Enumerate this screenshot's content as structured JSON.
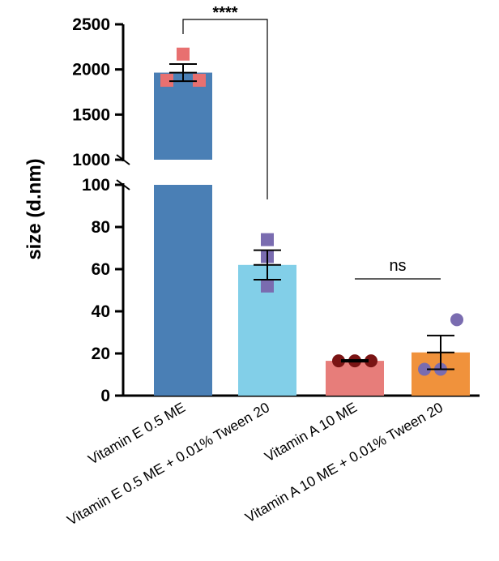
{
  "chart_data": {
    "type": "bar",
    "title": "",
    "xlabel": "",
    "ylabel": "size (d.nm)",
    "axis_break": true,
    "y_lower_range": [
      0,
      100
    ],
    "y_upper_range": [
      1000,
      2500
    ],
    "y_lower_ticks": [
      "0",
      "20",
      "40",
      "60",
      "80",
      "100"
    ],
    "y_upper_ticks": [
      "1000",
      "1500",
      "2000",
      "2500"
    ],
    "categories": [
      "Vitamin E 0.5 ME",
      "Vitamin E 0.5 ME + 0.01% Tween 20",
      "Vitamin A 10 ME",
      "Vitamin A 10 ME + 0.01% Tween 20"
    ],
    "values": [
      1965,
      62,
      16.5,
      20.5
    ],
    "error": [
      95,
      7,
      0.4,
      8
    ],
    "points": [
      [
        1880,
        2170,
        1880
      ],
      [
        52,
        66,
        74
      ],
      [
        16.5,
        16.5,
        16.5
      ],
      [
        12.5,
        12.5,
        36
      ]
    ],
    "bar_colors": [
      "#4a7fb5",
      "#82cfe8",
      "#e77d7a",
      "#f0923c"
    ],
    "point_colors": [
      "#e87070",
      "#7a6cb0",
      "#7a1414",
      "#7a6cb0"
    ],
    "point_shapes": [
      "square",
      "square",
      "circle",
      "circle"
    ],
    "comparisons": [
      {
        "groups": [
          0,
          1
        ],
        "label": "****"
      },
      {
        "groups": [
          2,
          3
        ],
        "label": "ns"
      }
    ]
  }
}
